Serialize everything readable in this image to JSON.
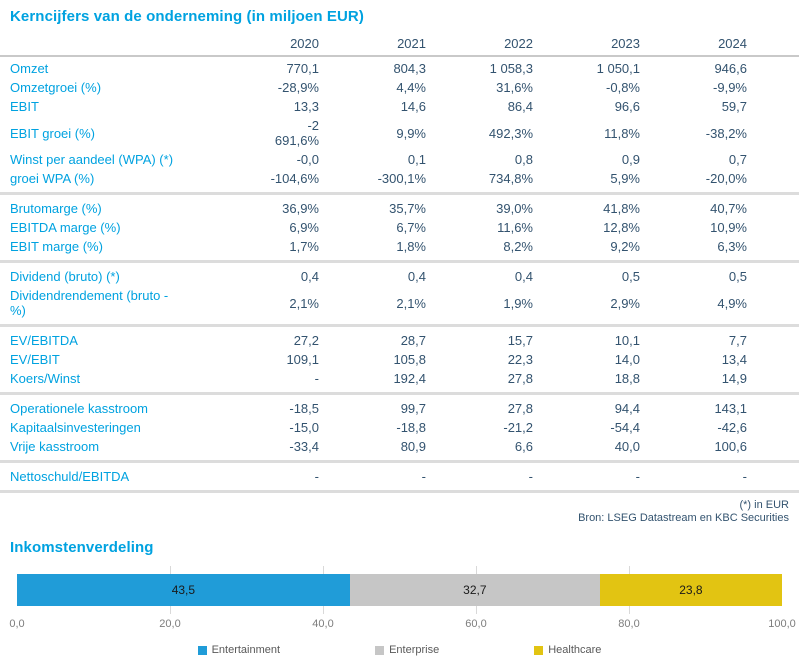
{
  "table": {
    "title": "Kerncijfers van de onderneming (in miljoen EUR)",
    "years": [
      "2020",
      "2021",
      "2022",
      "2023",
      "2024"
    ],
    "sections": [
      {
        "rows": [
          {
            "label": "Omzet",
            "values": [
              "770,1",
              "804,3",
              "1 058,3",
              "1 050,1",
              "946,6"
            ]
          },
          {
            "label": "Omzetgroei (%)",
            "values": [
              "-28,9%",
              "4,4%",
              "31,6%",
              "-0,8%",
              "-9,9%"
            ]
          },
          {
            "label": "EBIT",
            "values": [
              "13,3",
              "14,6",
              "86,4",
              "96,6",
              "59,7"
            ]
          },
          {
            "label": "EBIT groei (%)",
            "values": [
              "-2\n691,6%",
              "9,9%",
              "492,3%",
              "11,8%",
              "-38,2%"
            ]
          },
          {
            "label": "Winst per aandeel (WPA) (*)",
            "values": [
              "-0,0",
              "0,1",
              "0,8",
              "0,9",
              "0,7"
            ]
          },
          {
            "label": "groei WPA (%)",
            "values": [
              "-104,6%",
              "-300,1%",
              "734,8%",
              "5,9%",
              "-20,0%"
            ]
          }
        ]
      },
      {
        "rows": [
          {
            "label": "Brutomarge (%)",
            "values": [
              "36,9%",
              "35,7%",
              "39,0%",
              "41,8%",
              "40,7%"
            ]
          },
          {
            "label": "EBITDA marge (%)",
            "values": [
              "6,9%",
              "6,7%",
              "11,6%",
              "12,8%",
              "10,9%"
            ]
          },
          {
            "label": "EBIT marge (%)",
            "values": [
              "1,7%",
              "1,8%",
              "8,2%",
              "9,2%",
              "6,3%"
            ]
          }
        ]
      },
      {
        "rows": [
          {
            "label": "Dividend (bruto) (*)",
            "values": [
              "0,4",
              "0,4",
              "0,4",
              "0,5",
              "0,5"
            ]
          },
          {
            "label": "Dividendrendement (bruto -\n%)",
            "values": [
              "2,1%",
              "2,1%",
              "1,9%",
              "2,9%",
              "4,9%"
            ]
          }
        ]
      },
      {
        "rows": [
          {
            "label": "EV/EBITDA",
            "values": [
              "27,2",
              "28,7",
              "15,7",
              "10,1",
              "7,7"
            ]
          },
          {
            "label": "EV/EBIT",
            "values": [
              "109,1",
              "105,8",
              "22,3",
              "14,0",
              "13,4"
            ]
          },
          {
            "label": "Koers/Winst",
            "values": [
              "-",
              "192,4",
              "27,8",
              "18,8",
              "14,9"
            ]
          }
        ]
      },
      {
        "rows": [
          {
            "label": "Operationele kasstroom",
            "values": [
              "-18,5",
              "99,7",
              "27,8",
              "94,4",
              "143,1"
            ]
          },
          {
            "label": "Kapitaalsinvesteringen",
            "values": [
              "-15,0",
              "-18,8",
              "-21,2",
              "-54,4",
              "-42,6"
            ]
          },
          {
            "label": "Vrije kasstroom",
            "values": [
              "-33,4",
              "80,9",
              "6,6",
              "40,0",
              "100,6"
            ]
          }
        ]
      },
      {
        "rows": [
          {
            "label": "Nettoschuld/EBITDA",
            "values": [
              "-",
              "-",
              "-",
              "-",
              "-"
            ]
          }
        ]
      }
    ],
    "footnote": "(*) in EUR",
    "source": "Bron: LSEG Datastream en KBC Securities"
  },
  "chart_data": {
    "type": "bar",
    "variant": "stacked-horizontal",
    "title": "Inkomstenverdeling",
    "series": [
      {
        "name": "Entertainment",
        "value": 43.5,
        "label": "43,5",
        "color": "#209CD8"
      },
      {
        "name": "Enterprise",
        "value": 32.7,
        "label": "32,7",
        "color": "#C6C6C6"
      },
      {
        "name": "Healthcare",
        "value": 23.8,
        "label": "23,8",
        "color": "#E2C412"
      }
    ],
    "xlim": [
      0,
      100
    ],
    "x_ticks": [
      "0,0",
      "20,0",
      "40,0",
      "60,0",
      "80,0",
      "100,0"
    ],
    "grid": true,
    "legend_position": "bottom"
  },
  "colors": {
    "accent_blue": "#00A2E0",
    "value_text": "#33536F",
    "separator": "#DCDCDC",
    "header_rule": "#C9C9C9"
  }
}
